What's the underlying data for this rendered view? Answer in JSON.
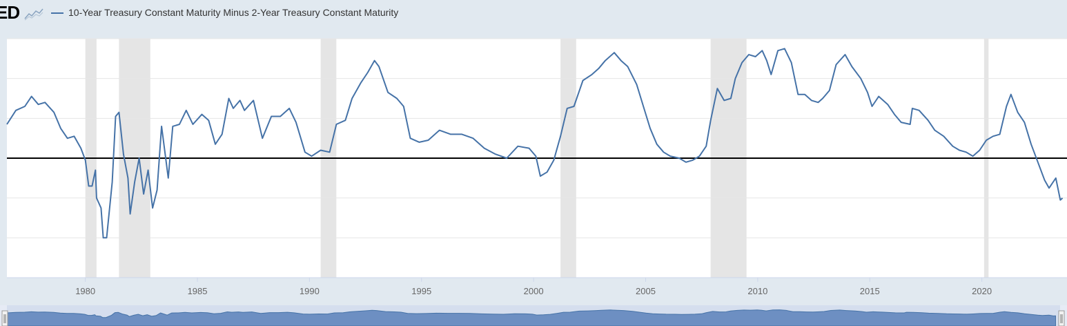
{
  "header": {
    "logo_text": "ED",
    "logo_icon": "line-chart-icon",
    "legend_label": "10-Year Treasury Constant Maturity Minus 2-Year Treasury Constant Maturity",
    "series_color": "#4572a7"
  },
  "navigator": {
    "left_handle_icon": "grip-handle-icon",
    "right_handle_icon": "grip-handle-icon"
  },
  "chart_data": {
    "type": "line",
    "title": "",
    "xlabel": "",
    "ylabel": "",
    "series": [
      {
        "name": "10-Year Treasury Constant Maturity Minus 2-Year Treasury Constant Maturity",
        "color": "#4572a7",
        "points": [
          [
            1976.5,
            0.85
          ],
          [
            1976.9,
            1.2
          ],
          [
            1977.3,
            1.3
          ],
          [
            1977.6,
            1.55
          ],
          [
            1977.9,
            1.35
          ],
          [
            1978.2,
            1.4
          ],
          [
            1978.6,
            1.15
          ],
          [
            1978.9,
            0.75
          ],
          [
            1979.2,
            0.5
          ],
          [
            1979.5,
            0.55
          ],
          [
            1979.8,
            0.25
          ],
          [
            1980.0,
            -0.05
          ],
          [
            1980.15,
            -0.7
          ],
          [
            1980.3,
            -0.7
          ],
          [
            1980.45,
            -0.3
          ],
          [
            1980.5,
            -1.0
          ],
          [
            1980.7,
            -1.25
          ],
          [
            1980.8,
            -2.0
          ],
          [
            1980.95,
            -2.0
          ],
          [
            1981.2,
            -0.6
          ],
          [
            1981.35,
            1.05
          ],
          [
            1981.5,
            1.15
          ],
          [
            1981.7,
            0.1
          ],
          [
            1981.9,
            -0.5
          ],
          [
            1982.0,
            -1.4
          ],
          [
            1982.2,
            -0.6
          ],
          [
            1982.4,
            0.0
          ],
          [
            1982.6,
            -0.9
          ],
          [
            1982.8,
            -0.3
          ],
          [
            1983.0,
            -1.25
          ],
          [
            1983.2,
            -0.8
          ],
          [
            1983.4,
            0.8
          ],
          [
            1983.7,
            -0.5
          ],
          [
            1983.9,
            0.8
          ],
          [
            1984.2,
            0.85
          ],
          [
            1984.5,
            1.2
          ],
          [
            1984.8,
            0.85
          ],
          [
            1985.2,
            1.1
          ],
          [
            1985.5,
            0.95
          ],
          [
            1985.8,
            0.35
          ],
          [
            1986.1,
            0.6
          ],
          [
            1986.4,
            1.5
          ],
          [
            1986.6,
            1.25
          ],
          [
            1986.9,
            1.45
          ],
          [
            1987.1,
            1.2
          ],
          [
            1987.5,
            1.45
          ],
          [
            1987.9,
            0.5
          ],
          [
            1988.3,
            1.05
          ],
          [
            1988.7,
            1.05
          ],
          [
            1989.1,
            1.25
          ],
          [
            1989.4,
            0.9
          ],
          [
            1989.8,
            0.15
          ],
          [
            1990.1,
            0.05
          ],
          [
            1990.5,
            0.2
          ],
          [
            1990.9,
            0.15
          ],
          [
            1991.2,
            0.85
          ],
          [
            1991.6,
            0.95
          ],
          [
            1991.9,
            1.5
          ],
          [
            1992.3,
            1.9
          ],
          [
            1992.6,
            2.15
          ],
          [
            1992.9,
            2.45
          ],
          [
            1993.1,
            2.3
          ],
          [
            1993.5,
            1.65
          ],
          [
            1993.9,
            1.5
          ],
          [
            1994.2,
            1.3
          ],
          [
            1994.5,
            0.5
          ],
          [
            1994.9,
            0.4
          ],
          [
            1995.3,
            0.45
          ],
          [
            1995.8,
            0.7
          ],
          [
            1996.3,
            0.6
          ],
          [
            1996.8,
            0.6
          ],
          [
            1997.3,
            0.5
          ],
          [
            1997.8,
            0.25
          ],
          [
            1998.3,
            0.1
          ],
          [
            1998.8,
            0.0
          ],
          [
            1999.3,
            0.3
          ],
          [
            1999.8,
            0.25
          ],
          [
            2000.1,
            0.05
          ],
          [
            2000.3,
            -0.45
          ],
          [
            2000.6,
            -0.35
          ],
          [
            2000.9,
            -0.05
          ],
          [
            2001.2,
            0.55
          ],
          [
            2001.5,
            1.25
          ],
          [
            2001.8,
            1.3
          ],
          [
            2002.2,
            1.95
          ],
          [
            2002.6,
            2.1
          ],
          [
            2002.9,
            2.25
          ],
          [
            2003.2,
            2.45
          ],
          [
            2003.6,
            2.65
          ],
          [
            2003.9,
            2.45
          ],
          [
            2004.2,
            2.3
          ],
          [
            2004.6,
            1.85
          ],
          [
            2004.9,
            1.3
          ],
          [
            2005.2,
            0.75
          ],
          [
            2005.5,
            0.35
          ],
          [
            2005.8,
            0.15
          ],
          [
            2006.1,
            0.05
          ],
          [
            2006.5,
            0.0
          ],
          [
            2006.8,
            -0.1
          ],
          [
            2007.1,
            -0.05
          ],
          [
            2007.4,
            0.05
          ],
          [
            2007.7,
            0.3
          ],
          [
            2007.9,
            0.95
          ],
          [
            2008.2,
            1.75
          ],
          [
            2008.5,
            1.45
          ],
          [
            2008.8,
            1.5
          ],
          [
            2009.0,
            2.0
          ],
          [
            2009.3,
            2.4
          ],
          [
            2009.6,
            2.6
          ],
          [
            2009.9,
            2.55
          ],
          [
            2010.2,
            2.7
          ],
          [
            2010.4,
            2.45
          ],
          [
            2010.6,
            2.1
          ],
          [
            2010.9,
            2.7
          ],
          [
            2011.2,
            2.75
          ],
          [
            2011.5,
            2.4
          ],
          [
            2011.8,
            1.6
          ],
          [
            2012.1,
            1.6
          ],
          [
            2012.4,
            1.45
          ],
          [
            2012.7,
            1.4
          ],
          [
            2012.9,
            1.5
          ],
          [
            2013.2,
            1.7
          ],
          [
            2013.5,
            2.35
          ],
          [
            2013.9,
            2.6
          ],
          [
            2014.2,
            2.3
          ],
          [
            2014.6,
            2.0
          ],
          [
            2014.9,
            1.65
          ],
          [
            2015.1,
            1.3
          ],
          [
            2015.4,
            1.55
          ],
          [
            2015.8,
            1.35
          ],
          [
            2016.1,
            1.1
          ],
          [
            2016.4,
            0.9
          ],
          [
            2016.8,
            0.85
          ],
          [
            2016.9,
            1.25
          ],
          [
            2017.2,
            1.2
          ],
          [
            2017.6,
            0.95
          ],
          [
            2017.9,
            0.7
          ],
          [
            2018.3,
            0.55
          ],
          [
            2018.7,
            0.3
          ],
          [
            2019.0,
            0.2
          ],
          [
            2019.3,
            0.15
          ],
          [
            2019.6,
            0.05
          ],
          [
            2019.9,
            0.2
          ],
          [
            2020.2,
            0.45
          ],
          [
            2020.5,
            0.55
          ],
          [
            2020.8,
            0.6
          ],
          [
            2021.1,
            1.3
          ],
          [
            2021.3,
            1.6
          ],
          [
            2021.6,
            1.15
          ],
          [
            2021.9,
            0.9
          ],
          [
            2022.2,
            0.35
          ],
          [
            2022.5,
            -0.1
          ],
          [
            2022.8,
            -0.55
          ],
          [
            2023.0,
            -0.75
          ],
          [
            2023.3,
            -0.5
          ],
          [
            2023.5,
            -1.05
          ],
          [
            2023.6,
            -1.0
          ]
        ]
      }
    ],
    "recessions": [
      [
        1980.0,
        1980.5
      ],
      [
        1981.5,
        1982.9
      ],
      [
        1990.5,
        1991.2
      ],
      [
        2001.2,
        2001.9
      ],
      [
        2007.9,
        2009.5
      ],
      [
        2020.1,
        2020.3
      ]
    ],
    "xlim": [
      1976.5,
      2023.8
    ],
    "ylim": [
      -3,
      3
    ],
    "x_ticks": [
      "1980",
      "1985",
      "1990",
      "1995",
      "2000",
      "2005",
      "2010",
      "2015",
      "2020"
    ],
    "x_tick_values": [
      1980,
      1985,
      1990,
      1995,
      2000,
      2005,
      2010,
      2015,
      2020
    ],
    "y_gridlines": [
      -2,
      -1,
      0,
      1,
      2,
      3
    ],
    "zero_line": 0,
    "grid": true,
    "legend_placement": "top-left"
  }
}
